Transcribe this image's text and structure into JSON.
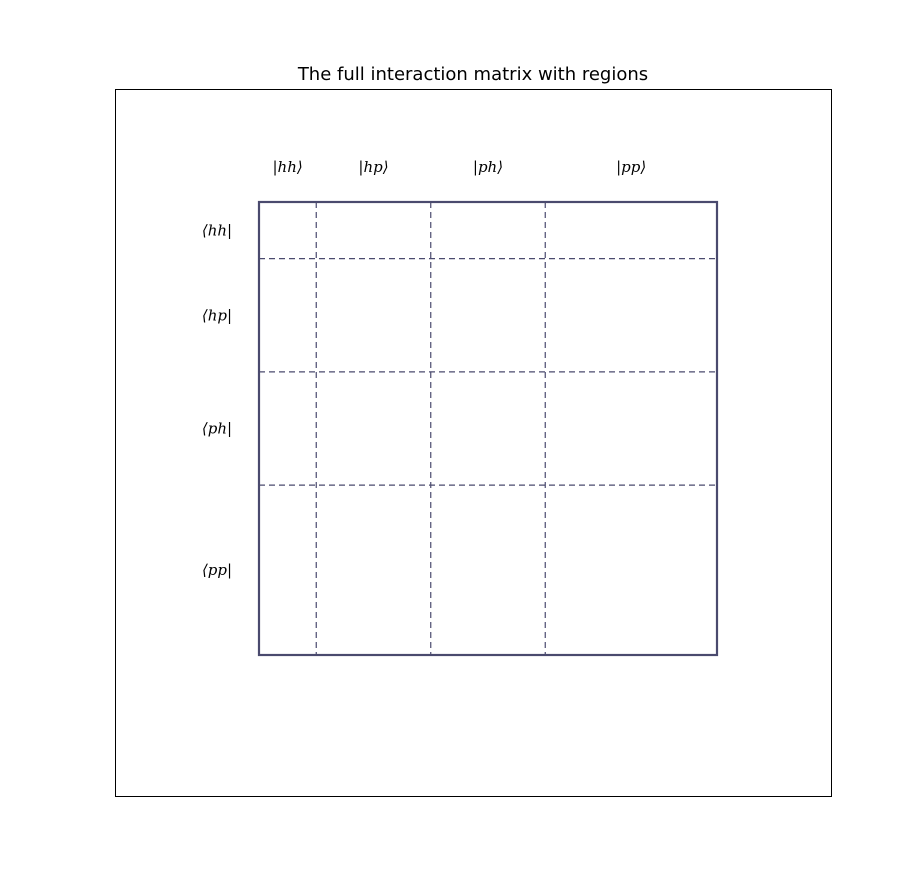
{
  "title": "The full interaction matrix with regions",
  "colors": {
    "matrix_line": "#4a4a6e",
    "frame": "#000000"
  },
  "matrix": {
    "columns": [
      {
        "label": "|hh⟩",
        "width": 1
      },
      {
        "label": "|hp⟩",
        "width": 2
      },
      {
        "label": "|ph⟩",
        "width": 2
      },
      {
        "label": "|pp⟩",
        "width": 3
      }
    ],
    "rows": [
      {
        "label": "⟨hh|",
        "height": 1
      },
      {
        "label": "⟨hp|",
        "height": 2
      },
      {
        "label": "⟨ph|",
        "height": 2
      },
      {
        "label": "⟨pp|",
        "height": 3
      }
    ]
  }
}
